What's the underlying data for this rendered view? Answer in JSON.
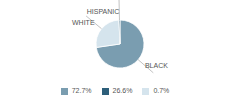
{
  "chart_data": {
    "type": "pie",
    "categories": [
      "BLACK",
      "WHITE",
      "HISPANIC"
    ],
    "values": [
      72.7,
      26.6,
      0.7
    ],
    "colors": [
      "#7a9db0",
      "#d5e4ed",
      "#2d5f7a"
    ],
    "legend_labels": [
      "72.7%",
      "26.6%",
      "0.7%"
    ],
    "legend": "bottom"
  }
}
